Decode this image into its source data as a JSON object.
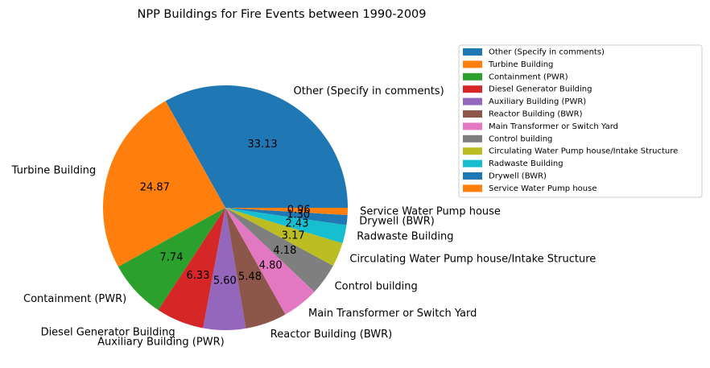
{
  "chart_data": {
    "type": "pie",
    "title": "NPP Buildings for Fire Events between 1990-2009",
    "legend_position": "top-right",
    "slices": [
      {
        "label": "Other (Specify in comments)",
        "value": 33.13,
        "pct_label": "33.13",
        "color": "#1f77b4"
      },
      {
        "label": "Turbine Building",
        "value": 24.87,
        "pct_label": "24.87",
        "color": "#ff7f0e"
      },
      {
        "label": "Containment (PWR)",
        "value": 7.74,
        "pct_label": "7.74",
        "color": "#2ca02c"
      },
      {
        "label": "Diesel Generator Building",
        "value": 6.33,
        "pct_label": "6.33",
        "color": "#d62728"
      },
      {
        "label": "Auxiliary Building (PWR)",
        "value": 5.6,
        "pct_label": "5.60",
        "color": "#9467bd"
      },
      {
        "label": "Reactor Building (BWR)",
        "value": 5.48,
        "pct_label": "5.48",
        "color": "#8c564b"
      },
      {
        "label": "Main Transformer or Switch Yard",
        "value": 4.8,
        "pct_label": "4.80",
        "color": "#e377c2"
      },
      {
        "label": "Control building",
        "value": 4.18,
        "pct_label": "4.18",
        "color": "#7f7f7f"
      },
      {
        "label": "Circulating Water Pump house/Intake Structure",
        "value": 3.17,
        "pct_label": "3.17",
        "color": "#bcbd22"
      },
      {
        "label": "Radwaste Building",
        "value": 2.43,
        "pct_label": "2.43",
        "color": "#17becf"
      },
      {
        "label": "Drywell (BWR)",
        "value": 1.3,
        "pct_label": "1.30",
        "color": "#1f77b4"
      },
      {
        "label": "Service Water Pump house",
        "value": 0.96,
        "pct_label": "0.96",
        "color": "#ff7f0e"
      }
    ]
  }
}
